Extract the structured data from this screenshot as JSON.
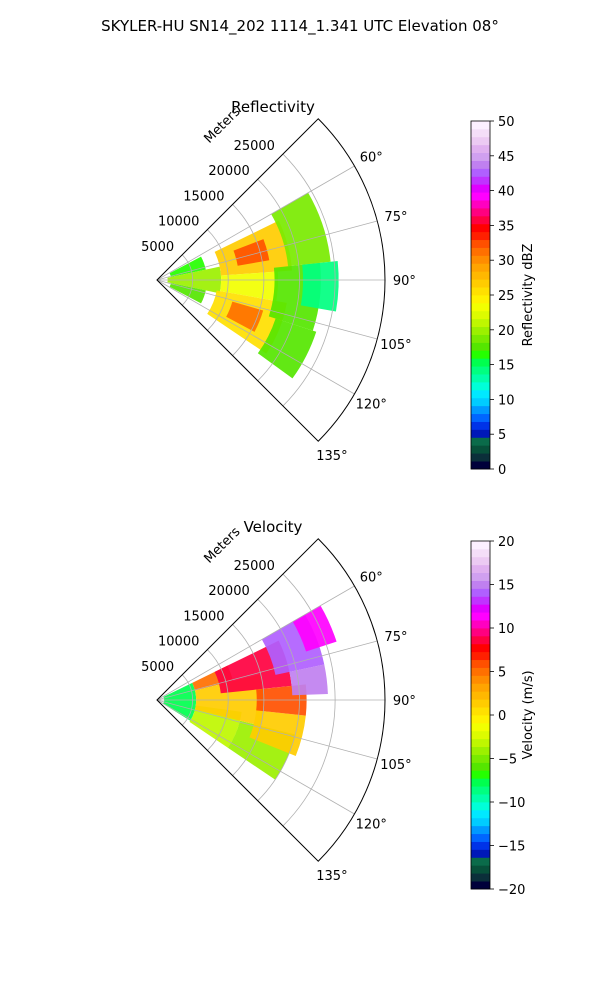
{
  "figure": {
    "suptitle": "SKYLER-HU  SN14_202  1114_1.341 UTC Elevation 08°"
  },
  "chart_data": [
    {
      "type": "heatmap",
      "title": "Reflectivity",
      "radial_label": "Meters",
      "r_ticks": [
        5000,
        10000,
        15000,
        20000,
        25000
      ],
      "r_tick_labels": [
        "5000",
        "10000",
        "15000",
        "20000",
        "25000"
      ],
      "rlim": [
        0,
        32000
      ],
      "theta_ticks_deg": [
        60,
        75,
        90,
        105,
        120,
        135
      ],
      "theta_tick_labels": [
        "60°",
        "75°",
        "90°",
        "105°",
        "120°",
        "135°"
      ],
      "theta_range_deg": [
        45,
        135
      ],
      "grid": true,
      "colorbar": {
        "label": "Reflectivity dBZ",
        "range": [
          0,
          50
        ],
        "ticks": [
          0,
          5,
          10,
          15,
          20,
          25,
          30,
          35,
          40,
          45,
          50
        ],
        "tick_labels": [
          "0",
          "5",
          "10",
          "15",
          "20",
          "25",
          "30",
          "35",
          "40",
          "45",
          "50"
        ],
        "colors": [
          "#00003a",
          "#0b2f3a",
          "#07503a",
          "#0a6b4a",
          "#0018b8",
          "#0033e8",
          "#0066ff",
          "#0099ff",
          "#00ccff",
          "#00e8ff",
          "#00ffd8",
          "#00ffaa",
          "#00ff80",
          "#00ff4f",
          "#25ff00",
          "#55e600",
          "#79ea00",
          "#9cf000",
          "#bff700",
          "#ddfb00",
          "#f2ff00",
          "#fff200",
          "#ffe000",
          "#ffcc00",
          "#ffb800",
          "#ffa400",
          "#ff8c00",
          "#ff7000",
          "#ff5000",
          "#ff2000",
          "#ff0000",
          "#ff0040",
          "#ff0080",
          "#ff00c0",
          "#ff00ff",
          "#e000ff",
          "#c033ff",
          "#b060ff",
          "#c080f0",
          "#d0a0f0",
          "#e0b0f0",
          "#eccaf3",
          "#f4def8",
          "#fcf0ff"
        ]
      },
      "sectors": [
        {
          "theta": [
            62,
            78
          ],
          "r": [
            2000,
            7000
          ],
          "value": 17
        },
        {
          "theta": [
            78,
            102
          ],
          "r": [
            1500,
            9000
          ],
          "value": 20
        },
        {
          "theta": [
            102,
            118
          ],
          "r": [
            2000,
            7000
          ],
          "value": 18
        },
        {
          "theta": [
            64,
            86
          ],
          "r": [
            9000,
            19000
          ],
          "value": 27
        },
        {
          "theta": [
            69,
            80
          ],
          "r": [
            11500,
            16000
          ],
          "value": 32
        },
        {
          "theta": [
            86,
            100
          ],
          "r": [
            9000,
            17000
          ],
          "value": 23
        },
        {
          "theta": [
            100,
            124
          ],
          "r": [
            8500,
            18500
          ],
          "value": 26
        },
        {
          "theta": [
            106,
            118
          ],
          "r": [
            11000,
            15500
          ],
          "value": 31
        },
        {
          "theta": [
            60,
            84
          ],
          "r": [
            18500,
            24500
          ],
          "value": 19
        },
        {
          "theta": [
            84,
            108
          ],
          "r": [
            16500,
            23000
          ],
          "value": 18
        },
        {
          "theta": [
            108,
            126
          ],
          "r": [
            17500,
            23500
          ],
          "value": 18
        },
        {
          "theta": [
            84,
            100
          ],
          "r": [
            20500,
            25500
          ],
          "value": 14
        }
      ]
    },
    {
      "type": "heatmap",
      "title": "Velocity",
      "radial_label": "Meters",
      "r_ticks": [
        5000,
        10000,
        15000,
        20000,
        25000
      ],
      "r_tick_labels": [
        "5000",
        "10000",
        "15000",
        "20000",
        "25000"
      ],
      "rlim": [
        0,
        32000
      ],
      "theta_ticks_deg": [
        60,
        75,
        90,
        105,
        120,
        135
      ],
      "theta_tick_labels": [
        "60°",
        "75°",
        "90°",
        "105°",
        "120°",
        "135°"
      ],
      "theta_range_deg": [
        45,
        135
      ],
      "grid": true,
      "colorbar": {
        "label": "Velocity (m/s)",
        "range": [
          -20,
          20
        ],
        "ticks": [
          -20,
          -15,
          -10,
          -5,
          0,
          5,
          10,
          15,
          20
        ],
        "tick_labels": [
          "−20",
          "−15",
          "−10",
          "−5",
          "0",
          "5",
          "10",
          "15",
          "20"
        ],
        "colors": [
          "#00003a",
          "#0b2f3a",
          "#07503a",
          "#0a6b4a",
          "#0018b8",
          "#0033e8",
          "#0066ff",
          "#0099ff",
          "#00ccff",
          "#00e8ff",
          "#00ffd8",
          "#00ffaa",
          "#00ff80",
          "#00ff4f",
          "#25ff00",
          "#55e600",
          "#79ea00",
          "#9cf000",
          "#bff700",
          "#ddfb00",
          "#f2ff00",
          "#fff200",
          "#ffe000",
          "#ffcc00",
          "#ffb800",
          "#ffa400",
          "#ff8c00",
          "#ff7000",
          "#ff5000",
          "#ff2000",
          "#ff0000",
          "#ff0040",
          "#ff0080",
          "#ff00c0",
          "#ff00ff",
          "#e000ff",
          "#c033ff",
          "#b060ff",
          "#c080f0",
          "#d0a0f0",
          "#e0b0f0",
          "#eccaf3",
          "#f4def8",
          "#fcf0ff"
        ]
      },
      "sectors": [
        {
          "theta": [
            64,
            122
          ],
          "r": [
            1000,
            5500
          ],
          "value": -8
        },
        {
          "theta": [
            98,
            124
          ],
          "r": [
            5500,
            12000
          ],
          "value": -3
        },
        {
          "theta": [
            104,
            124
          ],
          "r": [
            12000,
            20000
          ],
          "value": -4
        },
        {
          "theta": [
            64,
            76
          ],
          "r": [
            5500,
            11000
          ],
          "value": 5
        },
        {
          "theta": [
            76,
            104
          ],
          "r": [
            5500,
            15000
          ],
          "value": 1
        },
        {
          "theta": [
            96,
            112
          ],
          "r": [
            14000,
            21000
          ],
          "value": 1
        },
        {
          "theta": [
            64,
            84
          ],
          "r": [
            9000,
            19000
          ],
          "value": 9
        },
        {
          "theta": [
            84,
            96
          ],
          "r": [
            14000,
            21000
          ],
          "value": 6
        },
        {
          "theta": [
            60,
            78
          ],
          "r": [
            17000,
            24000
          ],
          "value": 14
        },
        {
          "theta": [
            78,
            88
          ],
          "r": [
            19000,
            24000
          ],
          "value": 15
        },
        {
          "theta": [
            60,
            72
          ],
          "r": [
            22000,
            26500
          ],
          "value": 11
        }
      ]
    }
  ]
}
